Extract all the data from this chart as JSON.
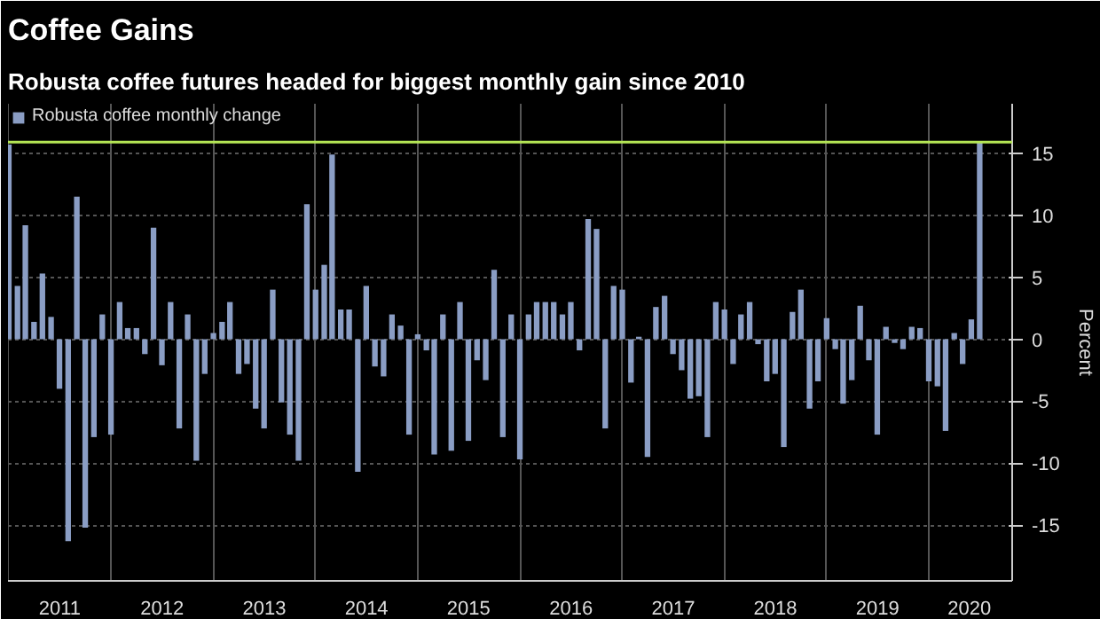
{
  "chart_data": {
    "type": "bar",
    "title": "Coffee Gains",
    "subtitle": "Robusta coffee futures headed for biggest monthly gain since 2010",
    "ylabel": "Percent",
    "x": [
      "2011-01",
      "2011-02",
      "2011-03",
      "2011-04",
      "2011-05",
      "2011-06",
      "2011-07",
      "2011-08",
      "2011-09",
      "2011-10",
      "2011-11",
      "2011-12",
      "2012-01",
      "2012-02",
      "2012-03",
      "2012-04",
      "2012-05",
      "2012-06",
      "2012-07",
      "2012-08",
      "2012-09",
      "2012-10",
      "2012-11",
      "2012-12",
      "2013-01",
      "2013-02",
      "2013-03",
      "2013-04",
      "2013-05",
      "2013-06",
      "2013-07",
      "2013-08",
      "2013-09",
      "2013-10",
      "2013-11",
      "2013-12",
      "2014-01",
      "2014-02",
      "2014-03",
      "2014-04",
      "2014-05",
      "2014-06",
      "2014-07",
      "2014-08",
      "2014-09",
      "2014-10",
      "2014-11",
      "2014-12",
      "2015-01",
      "2015-02",
      "2015-03",
      "2015-04",
      "2015-05",
      "2015-06",
      "2015-07",
      "2015-08",
      "2015-09",
      "2015-10",
      "2015-11",
      "2015-12",
      "2016-01",
      "2016-02",
      "2016-03",
      "2016-04",
      "2016-05",
      "2016-06",
      "2016-07",
      "2016-08",
      "2016-09",
      "2016-10",
      "2016-11",
      "2016-12",
      "2017-01",
      "2017-02",
      "2017-03",
      "2017-04",
      "2017-05",
      "2017-06",
      "2017-07",
      "2017-08",
      "2017-09",
      "2017-10",
      "2017-11",
      "2017-12",
      "2018-01",
      "2018-02",
      "2018-03",
      "2018-04",
      "2018-05",
      "2018-06",
      "2018-07",
      "2018-08",
      "2018-09",
      "2018-10",
      "2018-11",
      "2018-12",
      "2019-01",
      "2019-02",
      "2019-03",
      "2019-04",
      "2019-05",
      "2019-06",
      "2019-07",
      "2019-08",
      "2019-09",
      "2019-10",
      "2019-11",
      "2019-12",
      "2020-01",
      "2020-02",
      "2020-03",
      "2020-04",
      "2020-05",
      "2020-06",
      "2020-07"
    ],
    "series": [
      {
        "name": "Robusta coffee monthly change",
        "color": "#8a9dc4",
        "values": [
          15.7,
          4.3,
          9.2,
          1.4,
          5.3,
          1.8,
          -4.0,
          -16.3,
          11.5,
          -15.2,
          -7.9,
          2.0,
          -7.7,
          3.0,
          0.9,
          0.9,
          -1.2,
          9.0,
          -2.1,
          3.0,
          -7.2,
          2.0,
          -9.8,
          -2.8,
          0.5,
          1.4,
          3.0,
          -2.8,
          -2.0,
          -5.6,
          -7.2,
          4.0,
          -5.1,
          -7.7,
          -9.8,
          10.9,
          4.0,
          6.0,
          14.9,
          2.4,
          2.4,
          -10.7,
          4.3,
          -2.2,
          -3.0,
          2.0,
          1.1,
          -7.7,
          0.4,
          -0.9,
          -9.3,
          2.0,
          -9.0,
          3.0,
          -8.2,
          -1.7,
          -3.3,
          5.6,
          -7.9,
          2.0,
          -9.7,
          2.0,
          3.0,
          3.0,
          3.0,
          2.0,
          3.0,
          -0.9,
          9.7,
          8.9,
          -7.2,
          4.3,
          4.0,
          -3.5,
          0.2,
          -9.5,
          2.6,
          3.5,
          -1.2,
          -2.5,
          -4.8,
          -4.6,
          -7.9,
          3.0,
          2.4,
          -2.0,
          2.0,
          3.0,
          -0.4,
          -3.4,
          -2.8,
          -8.7,
          2.2,
          4.0,
          -5.6,
          -3.4,
          1.7,
          -0.8,
          -5.2,
          -3.3,
          2.7,
          -1.7,
          -7.7,
          1.0,
          -0.3,
          -0.8,
          1.0,
          0.9,
          -3.4,
          -3.8,
          -7.4,
          0.5,
          -2.0,
          1.6,
          15.9
        ]
      }
    ],
    "xlim": [
      "2010-12-29",
      "2020-10-25"
    ],
    "xticks": [
      {
        "value": "2011-01-01",
        "label": null
      },
      {
        "value": "2011-07-02",
        "label": "2011"
      },
      {
        "value": "2012-01-01",
        "label": null
      },
      {
        "value": "2012-07-02",
        "label": "2012"
      },
      {
        "value": "2013-01-01",
        "label": null
      },
      {
        "value": "2013-07-02",
        "label": "2013"
      },
      {
        "value": "2014-01-01",
        "label": null
      },
      {
        "value": "2014-07-02",
        "label": "2014"
      },
      {
        "value": "2015-01-01",
        "label": null
      },
      {
        "value": "2015-07-02",
        "label": "2015"
      },
      {
        "value": "2016-01-01",
        "label": null
      },
      {
        "value": "2016-07-02",
        "label": "2016"
      },
      {
        "value": "2017-01-01",
        "label": null
      },
      {
        "value": "2017-07-02",
        "label": "2017"
      },
      {
        "value": "2018-01-01",
        "label": null
      },
      {
        "value": "2018-07-02",
        "label": "2018"
      },
      {
        "value": "2019-01-01",
        "label": null
      },
      {
        "value": "2019-07-02",
        "label": "2019"
      },
      {
        "value": "2020-01-01",
        "label": null
      },
      {
        "value": "2020-05-25",
        "label": "2020"
      }
    ],
    "ylim": [
      -19.5,
      19
    ],
    "yticks": [
      -15,
      -10,
      -5,
      0,
      5,
      10,
      15
    ],
    "ref_lines": [
      {
        "axis": "y",
        "value": 15.9,
        "color": "#b5e655"
      }
    ],
    "grid": true,
    "legend": "top left"
  }
}
